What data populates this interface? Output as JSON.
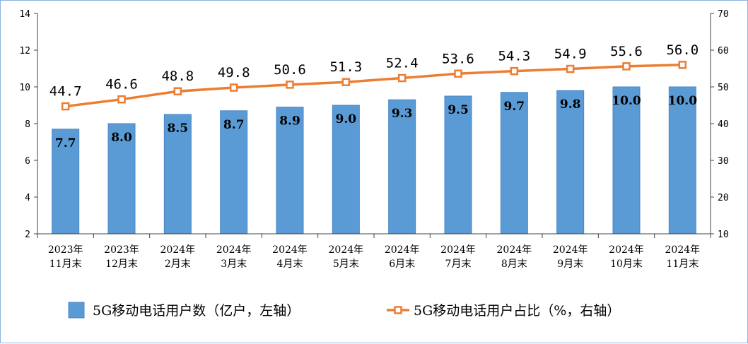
{
  "chart_data": {
    "type": "bar",
    "categories": [
      "2023年\n11月末",
      "2023年\n12月末",
      "2024年\n2月末",
      "2024年\n3月末",
      "2024年\n4月末",
      "2024年\n5月末",
      "2024年\n6月末",
      "2024年\n7月末",
      "2024年\n8月末",
      "2024年\n9月末",
      "2024年\n10月末",
      "2024年\n11月末"
    ],
    "series": [
      {
        "name": "5G移动电话用户数（亿户，左轴）",
        "type": "bar",
        "axis": "left",
        "color": "#5b9bd5",
        "values": [
          7.7,
          8.0,
          8.5,
          8.7,
          8.9,
          9.0,
          9.3,
          9.5,
          9.7,
          9.8,
          10.0,
          10.0
        ],
        "labels": [
          "7.7",
          "8.0",
          "8.5",
          "8.7",
          "8.9",
          "9.0",
          "9.3",
          "9.5",
          "9.7",
          "9.8",
          "10.0",
          "10.0"
        ]
      },
      {
        "name": "5G移动电话用户占比（%，右轴）",
        "type": "line",
        "axis": "right",
        "color": "#ed7d31",
        "values": [
          44.7,
          46.6,
          48.8,
          49.8,
          50.6,
          51.3,
          52.4,
          53.6,
          54.3,
          54.9,
          55.6,
          56.0
        ],
        "labels": [
          "44.7",
          "46.6",
          "48.8",
          "49.8",
          "50.6",
          "51.3",
          "52.4",
          "53.6",
          "54.3",
          "54.9",
          "55.6",
          "56.0"
        ]
      }
    ],
    "y_left": {
      "range": [
        2,
        14
      ],
      "ticks": [
        "2",
        "4",
        "6",
        "8",
        "10",
        "12",
        "14"
      ]
    },
    "y_right": {
      "range": [
        10,
        70
      ],
      "ticks": [
        "10",
        "20",
        "30",
        "40",
        "50",
        "60",
        "70"
      ]
    },
    "grid": false,
    "legend": "bottom",
    "title": "",
    "xlabel": "",
    "ylabel": ""
  }
}
